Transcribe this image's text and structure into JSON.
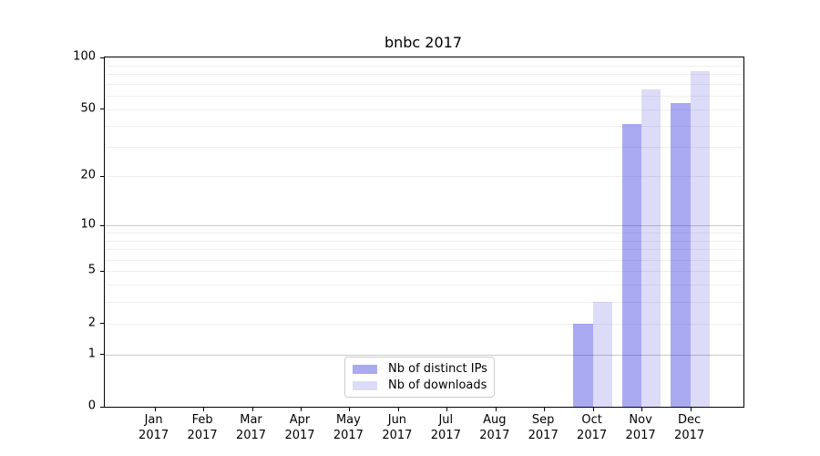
{
  "title": "bnbc 2017",
  "chart_data": {
    "type": "bar",
    "title": "bnbc 2017",
    "categories": [
      "Jan",
      "Feb",
      "Mar",
      "Apr",
      "May",
      "Jun",
      "Jul",
      "Aug",
      "Sep",
      "Oct",
      "Nov",
      "Dec"
    ],
    "category_year": "2017",
    "series": [
      {
        "name": "Nb of distinct IPs",
        "color": "#aaaaf2",
        "fill": "rgba(0,0,216,0.333)",
        "values": [
          0,
          0,
          0,
          0,
          0,
          0,
          0,
          0,
          0,
          2,
          41,
          54
        ]
      },
      {
        "name": "Nb of downloads",
        "color": "#dcdcf8",
        "fill": "rgba(0,0,204,0.137)",
        "values": [
          0,
          0,
          0,
          0,
          0,
          0,
          0,
          0,
          0,
          3,
          65,
          83
        ]
      }
    ],
    "xlabel": "",
    "ylabel": "",
    "ylim": [
      0,
      100
    ],
    "yscale": "log10(1+y)",
    "yticks": [
      0,
      1,
      2,
      5,
      10,
      20,
      50,
      100
    ],
    "grid": true,
    "grid_major": [
      1,
      10,
      100
    ],
    "grid_minor": [
      2,
      3,
      4,
      5,
      6,
      7,
      8,
      9,
      20,
      30,
      40,
      50,
      60,
      70,
      80,
      90
    ],
    "legend_position": "lower center"
  },
  "colors": {
    "major_grid": "#c9c9c9",
    "minor_grid": "#efefef",
    "spine": "#000000",
    "text": "#000000",
    "legend_border": "#cccccc"
  }
}
